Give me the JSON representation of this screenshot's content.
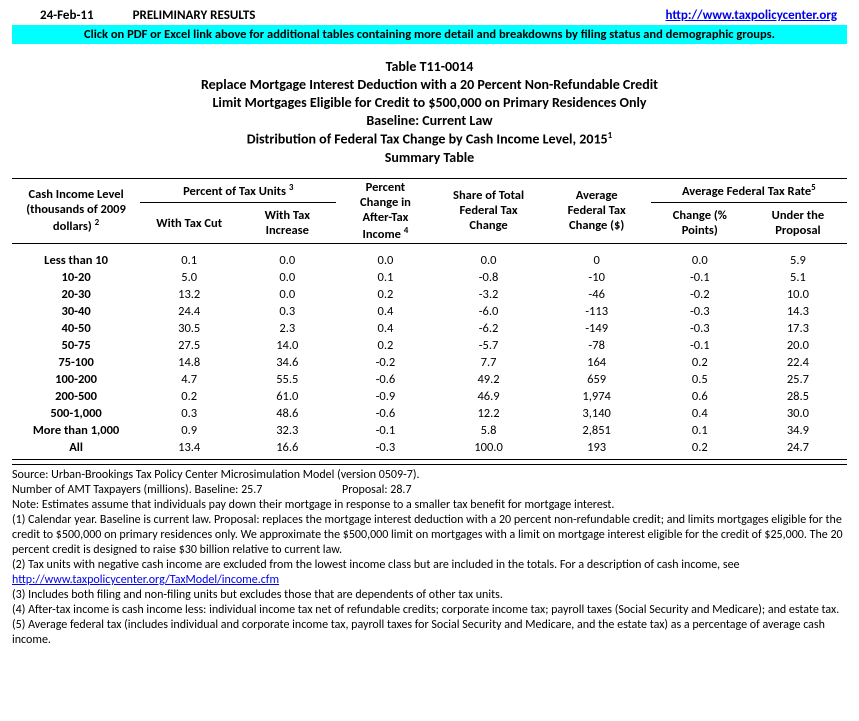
{
  "header": {
    "date": "24-Feb-11",
    "prelim": "PRELIMINARY RESULTS",
    "link_text": "http://www.taxpolicycenter.org",
    "cyan_msg": "Click on PDF or Excel link above for additional tables containing more detail and breakdowns by filing status and demographic groups."
  },
  "title": {
    "table_num": "Table T11-0014",
    "line1": "Replace Mortgage Interest Deduction with a 20 Percent Non-Refundable Credit",
    "line2": "Limit Mortgages Eligible for Credit to $500,000 on Primary Residences Only",
    "line3": "Baseline: Current Law",
    "line4": "Distribution of Federal Tax Change by Cash Income Level, 2015",
    "line4_sup": "1",
    "line5": "Summary Table"
  },
  "columns": {
    "cash_income_a": "Cash Income Level",
    "cash_income_b": "(thousands of 2009",
    "cash_income_c": "dollars)",
    "cash_income_sup": "2",
    "pct_units": "Percent of Tax Units",
    "pct_units_sup": "3",
    "with_cut": "With Tax Cut",
    "with_inc_a": "With Tax",
    "with_inc_b": "Increase",
    "pct_change_a": "Percent",
    "pct_change_b": "Change in",
    "pct_change_c": "After-Tax",
    "pct_change_d": "Income",
    "pct_change_sup": "4",
    "share_a": "Share of Total",
    "share_b": "Federal Tax",
    "share_c": "Change",
    "avg_a": "Average",
    "avg_b": "Federal Tax",
    "avg_c": "Change ($)",
    "rate": "Average Federal Tax Rate",
    "rate_sup": "5",
    "rate_chg_a": "Change (%",
    "rate_chg_b": "Points)",
    "rate_und_a": "Under the",
    "rate_und_b": "Proposal"
  },
  "rows": [
    {
      "label": "Less than 10",
      "cut": "0.1",
      "inc": "0.0",
      "pct": "0.0",
      "share": "0.0",
      "avg": "0",
      "chg": "0.0",
      "under": "5.9"
    },
    {
      "label": "10-20",
      "cut": "5.0",
      "inc": "0.0",
      "pct": "0.1",
      "share": "-0.8",
      "avg": "-10",
      "chg": "-0.1",
      "under": "5.1"
    },
    {
      "label": "20-30",
      "cut": "13.2",
      "inc": "0.0",
      "pct": "0.2",
      "share": "-3.2",
      "avg": "-46",
      "chg": "-0.2",
      "under": "10.0"
    },
    {
      "label": "30-40",
      "cut": "24.4",
      "inc": "0.3",
      "pct": "0.4",
      "share": "-6.0",
      "avg": "-113",
      "chg": "-0.3",
      "under": "14.3"
    },
    {
      "label": "40-50",
      "cut": "30.5",
      "inc": "2.3",
      "pct": "0.4",
      "share": "-6.2",
      "avg": "-149",
      "chg": "-0.3",
      "under": "17.3"
    },
    {
      "label": "50-75",
      "cut": "27.5",
      "inc": "14.0",
      "pct": "0.2",
      "share": "-5.7",
      "avg": "-78",
      "chg": "-0.1",
      "under": "20.0"
    },
    {
      "label": "75-100",
      "cut": "14.8",
      "inc": "34.6",
      "pct": "-0.2",
      "share": "7.7",
      "avg": "164",
      "chg": "0.2",
      "under": "22.4"
    },
    {
      "label": "100-200",
      "cut": "4.7",
      "inc": "55.5",
      "pct": "-0.6",
      "share": "49.2",
      "avg": "659",
      "chg": "0.5",
      "under": "25.7"
    },
    {
      "label": "200-500",
      "cut": "0.2",
      "inc": "61.0",
      "pct": "-0.9",
      "share": "46.9",
      "avg": "1,974",
      "chg": "0.6",
      "under": "28.5"
    },
    {
      "label": "500-1,000",
      "cut": "0.3",
      "inc": "48.6",
      "pct": "-0.6",
      "share": "12.2",
      "avg": "3,140",
      "chg": "0.4",
      "under": "30.0"
    },
    {
      "label": "More than 1,000",
      "cut": "0.9",
      "inc": "32.3",
      "pct": "-0.1",
      "share": "5.8",
      "avg": "2,851",
      "chg": "0.1",
      "under": "34.9"
    },
    {
      "label": "All",
      "cut": "13.4",
      "inc": "16.6",
      "pct": "-0.3",
      "share": "100.0",
      "avg": "193",
      "chg": "0.2",
      "under": "24.7"
    }
  ],
  "footnotes": {
    "source": "Source: Urban-Brookings Tax Policy Center Microsimulation Model (version 0509-7).",
    "amt_a": "Number of AMT Taxpayers (millions).  Baseline: 25.7",
    "amt_b": "Proposal: 28.7",
    "note": "Note: Estimates assume that individuals pay down their mortgage in response to a smaller tax benefit for mortgage interest.",
    "n1": "(1) Calendar year. Baseline is current law. Proposal: replaces the mortgage interest deduction with a 20 percent non-refundable credit; and limits mortgages eligible for the credit to $500,000 on primary residences only.  We approximate the $500,000 limit on mortgages with a limit on mortgage interest eligible for the credit of $25,000. The 20 percent credit is designed to raise $30 billion relative to current law.",
    "n2": "(2) Tax units with negative cash income are excluded from the lowest income class but are included in the totals. For a description of cash income, see ",
    "n2_link": "http://www.taxpolicycenter.org/TaxModel/income.cfm",
    "n3": "(3) Includes both filing and non-filing units but excludes those that are dependents of other tax units.",
    "n4": "(4) After-tax income is cash income less: individual income tax net of refundable credits; corporate income tax; payroll taxes (Social Security and Medicare); and estate tax.",
    "n5": "(5) Average federal tax (includes individual and corporate income tax, payroll taxes for Social Security and Medicare, and the estate tax) as a percentage of average cash income."
  }
}
